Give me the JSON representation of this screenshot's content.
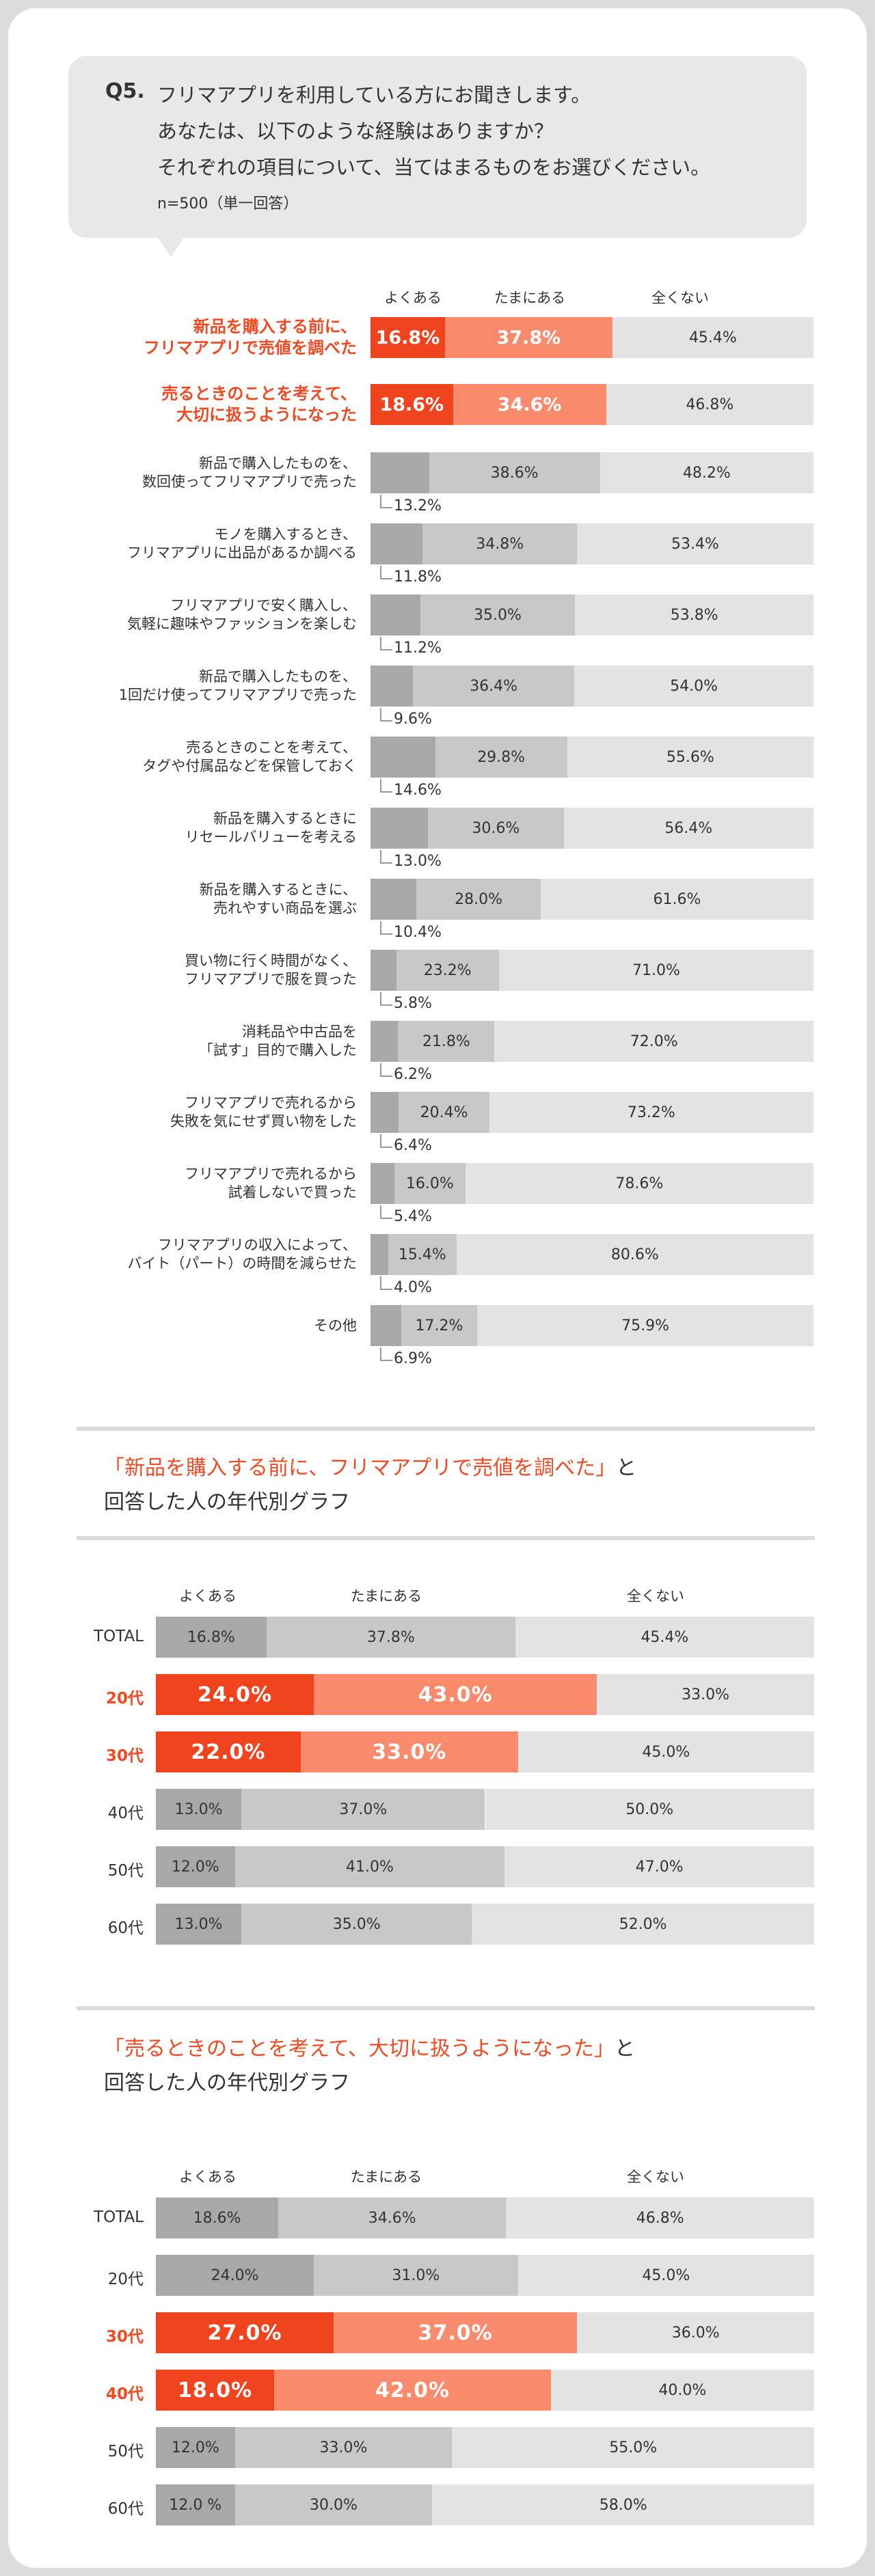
{
  "question": {
    "label": "Q5.",
    "lines": [
      "フリマアプリを利用している方にお聞きします。",
      "あなたは、以下のような経験はありますか？",
      "それぞれの項目について、当てはまるものをお選びください。"
    ],
    "note": "n=500（単一回答）"
  },
  "colors": {
    "hl_dark": "#f0441e",
    "hl_mid": "#f98b6c",
    "dark": "#a8a8a8",
    "mid": "#c8c8c8",
    "light": "#e3e3e3"
  },
  "chart_data": [
    {
      "type": "bar",
      "orientation": "horizontal-stacked-100",
      "legend": [
        "よくある",
        "たまにある",
        "全くない"
      ],
      "categories": [
        "新品を購入する前に、\nフリマアプリで売値を調べた",
        "売るときのことを考えて、\n大切に扱うようになった",
        "新品で購入したものを、\n数回使ってフリマアプリで売った",
        "モノを購入するとき、\nフリマアプリに出品があるか調べる",
        "フリマアプリで安く購入し、\n気軽に趣味やファッションを楽しむ",
        "新品で購入したものを、\n1回だけ使ってフリマアプリで売った",
        "売るときのことを考えて、\nタグや付属品などを保管しておく",
        "新品を購入するときに\nリセールバリューを考える",
        "新品を購入するときに、\n売れやすい商品を選ぶ",
        "買い物に行く時間がなく、\nフリマアプリで服を買った",
        "消耗品や中古品を\n「試す」目的で購入した",
        "フリマアプリで売れるから\n失敗を気にせず買い物をした",
        "フリマアプリで売れるから\n試着しないで買った",
        "フリマアプリの収入によって、\nバイト（パート）の時間を減らせた",
        "その他"
      ],
      "highlight": [
        0,
        1
      ],
      "series": [
        {
          "name": "よくある",
          "values": [
            16.8,
            18.6,
            13.2,
            11.8,
            11.2,
            9.6,
            14.6,
            13.0,
            10.4,
            5.8,
            6.2,
            6.4,
            5.4,
            4.0,
            6.9
          ],
          "labels": [
            "16.8%",
            "18.6%",
            "13.2%",
            "11.8%",
            "11.2%",
            "9.6%",
            "14.6%",
            "13.0%",
            "10.4%",
            "5.8%",
            "6.2%",
            "6.4%",
            "5.4%",
            "4.0%",
            "6.9%"
          ]
        },
        {
          "name": "たまにある",
          "values": [
            37.8,
            34.6,
            38.6,
            34.8,
            35.0,
            36.4,
            29.8,
            30.6,
            28.0,
            23.2,
            21.8,
            20.4,
            16.0,
            15.4,
            17.2
          ],
          "labels": [
            "37.8%",
            "34.6%",
            "38.6%",
            "34.8%",
            "35.0%",
            "36.4%",
            "29.8%",
            "30.6%",
            "28.0%",
            "23.2%",
            "21.8%",
            "20.4%",
            "16.0%",
            "15.4%",
            "17.2%"
          ]
        },
        {
          "name": "全くない",
          "values": [
            45.4,
            46.8,
            48.2,
            53.4,
            53.8,
            54.0,
            55.6,
            56.4,
            61.6,
            71.0,
            72.0,
            73.2,
            78.6,
            80.6,
            75.9
          ],
          "labels": [
            "45.4%",
            "46.8%",
            "48.2%",
            "53.4%",
            "53.8%",
            "54.0%",
            "55.6%",
            "56.4%",
            "61.6%",
            "71.0%",
            "72.0%",
            "73.2%",
            "78.6%",
            "80.6%",
            "75.9%"
          ]
        }
      ]
    },
    {
      "type": "bar",
      "orientation": "horizontal-stacked-100",
      "title_quote": "「新品を購入する前に、フリマアプリで売値を調べた」",
      "title_suffix": "と",
      "title_line2": "回答した人の年代別グラフ",
      "legend": [
        "よくある",
        "たまにある",
        "全くない"
      ],
      "categories": [
        "TOTAL",
        "20代",
        "30代",
        "40代",
        "50代",
        "60代"
      ],
      "highlight": [
        1,
        2
      ],
      "series": [
        {
          "name": "よくある",
          "values": [
            16.8,
            24.0,
            22.0,
            13.0,
            12.0,
            13.0
          ],
          "labels": [
            "16.8%",
            "24.0%",
            "22.0%",
            "13.0%",
            "12.0%",
            "13.0%"
          ]
        },
        {
          "name": "たまにある",
          "values": [
            37.8,
            43.0,
            33.0,
            37.0,
            41.0,
            35.0
          ],
          "labels": [
            "37.8%",
            "43.0%",
            "33.0%",
            "37.0%",
            "41.0%",
            "35.0%"
          ]
        },
        {
          "name": "全くない",
          "values": [
            45.4,
            33.0,
            45.0,
            50.0,
            47.0,
            52.0
          ],
          "labels": [
            "45.4%",
            "33.0%",
            "45.0%",
            "50.0%",
            "47.0%",
            "52.0%"
          ]
        }
      ]
    },
    {
      "type": "bar",
      "orientation": "horizontal-stacked-100",
      "title_quote": "「売るときのことを考えて、大切に扱うようになった」",
      "title_suffix": "と",
      "title_line2": "回答した人の年代別グラフ",
      "legend": [
        "よくある",
        "たまにある",
        "全くない"
      ],
      "categories": [
        "TOTAL",
        "20代",
        "30代",
        "40代",
        "50代",
        "60代"
      ],
      "highlight": [
        2,
        3
      ],
      "series": [
        {
          "name": "よくある",
          "values": [
            18.6,
            24.0,
            27.0,
            18.0,
            12.0,
            12.0
          ],
          "labels": [
            "18.6%",
            "24.0%",
            "27.0%",
            "18.0%",
            "12.0%",
            "12.0 %"
          ]
        },
        {
          "name": "たまにある",
          "values": [
            34.6,
            31.0,
            37.0,
            42.0,
            33.0,
            30.0
          ],
          "labels": [
            "34.6%",
            "31.0%",
            "37.0%",
            "42.0%",
            "33.0%",
            "30.0%"
          ]
        },
        {
          "name": "全くない",
          "values": [
            46.8,
            45.0,
            36.0,
            40.0,
            55.0,
            58.0
          ],
          "labels": [
            "46.8%",
            "45.0%",
            "36.0%",
            "40.0%",
            "55.0%",
            "58.0%"
          ]
        }
      ]
    }
  ]
}
